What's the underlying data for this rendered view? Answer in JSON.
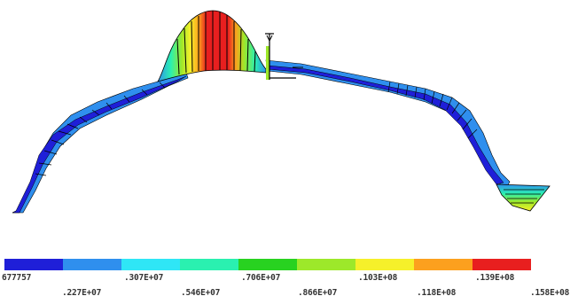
{
  "legend": {
    "colors": [
      "#1f1fd8",
      "#2f8fee",
      "#2fe6f6",
      "#2af0b0",
      "#28d220",
      "#9de82a",
      "#f6f02a",
      "#fca01e",
      "#e81f1f"
    ],
    "labels_top": [
      "677757",
      ".307E+07",
      ".706E+07",
      ".103E+08",
      ".139E+08"
    ],
    "labels_bottom": [
      ".227E+07",
      ".546E+07",
      ".866E+07",
      ".118E+08",
      ".158E+08"
    ]
  }
}
